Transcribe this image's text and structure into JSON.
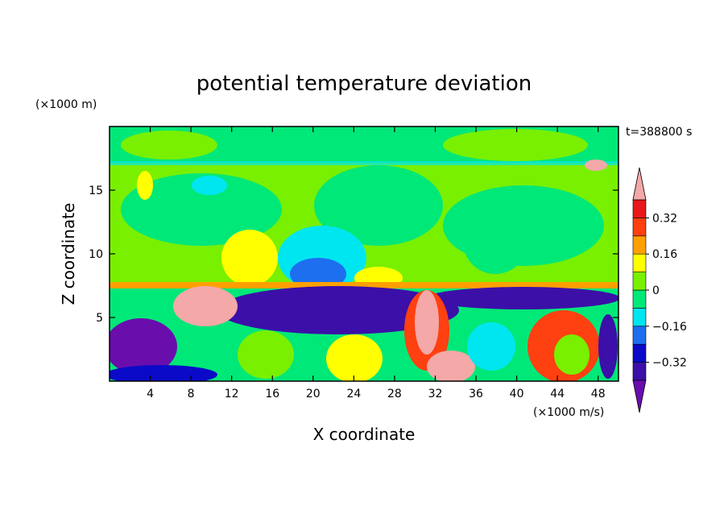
{
  "chart_data": {
    "type": "heatmap",
    "title": "potential temperature deviation",
    "xlabel": "X coordinate",
    "ylabel": "Z coordinate",
    "x_unit": "(×1000 m/s)",
    "y_unit": "(×1000 m)",
    "time_label": "t=388800 s",
    "xlim": [
      0,
      50
    ],
    "ylim": [
      0,
      20
    ],
    "x_ticks": [
      4,
      8,
      12,
      16,
      20,
      24,
      28,
      32,
      36,
      40,
      44,
      48
    ],
    "y_ticks": [
      5,
      10,
      15
    ],
    "colorbar": {
      "levels": [
        -0.4,
        -0.32,
        -0.24,
        -0.16,
        -0.08,
        0,
        0.08,
        0.16,
        0.24,
        0.32,
        0.4
      ],
      "labels": [
        "0.32",
        "0.16",
        "0",
        "−0.16",
        "−0.32"
      ],
      "label_values": [
        0.32,
        0.16,
        0,
        -0.16,
        -0.32
      ],
      "colors": [
        "#6a0dad",
        "#3b0fa8",
        "#0a0ac8",
        "#1e6ef0",
        "#00e6f0",
        "#00e878",
        "#78f000",
        "#ffff00",
        "#ffa000",
        "#ff4010",
        "#e81818",
        "#f4a8a8"
      ],
      "extend": "both"
    }
  }
}
